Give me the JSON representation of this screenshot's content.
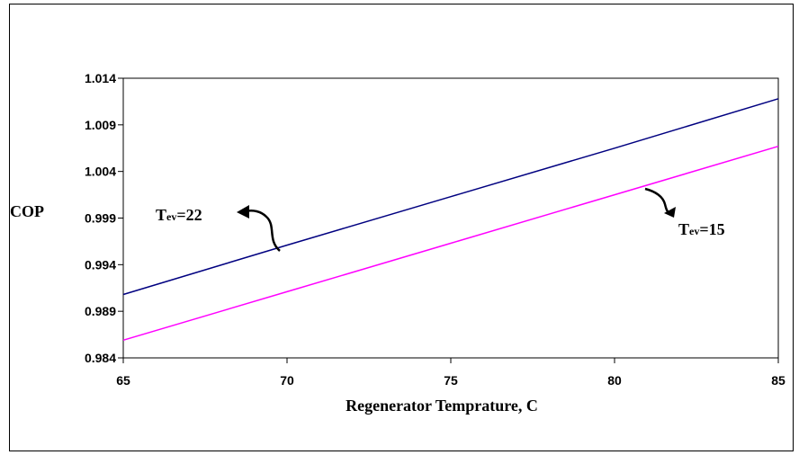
{
  "chart_data": {
    "type": "line",
    "xlabel": "Regenerator Temprature, C",
    "ylabel": "COP",
    "xlim": [
      65,
      85
    ],
    "ylim": [
      0.984,
      1.014
    ],
    "xticks": [
      "65",
      "70",
      "75",
      "80",
      "85"
    ],
    "yticks": [
      "0.984",
      "0.989",
      "0.994",
      "0.999",
      "1.004",
      "1.009",
      "1.014"
    ],
    "grid": false,
    "legend": "none",
    "series": [
      {
        "label_main": "T",
        "label_sub": "ev",
        "label_rest": "=22",
        "color": "#000080",
        "x": [
          65,
          70,
          75,
          80,
          85
        ],
        "y": [
          0.9908,
          0.9961,
          1.0013,
          1.0065,
          1.0118
        ]
      },
      {
        "label_main": "T",
        "label_sub": "ev",
        "label_rest": "=15",
        "color": "#ff00ff",
        "x": [
          65,
          70,
          75,
          80,
          85
        ],
        "y": [
          0.9859,
          0.9911,
          0.9963,
          1.0015,
          1.0067
        ]
      }
    ]
  }
}
